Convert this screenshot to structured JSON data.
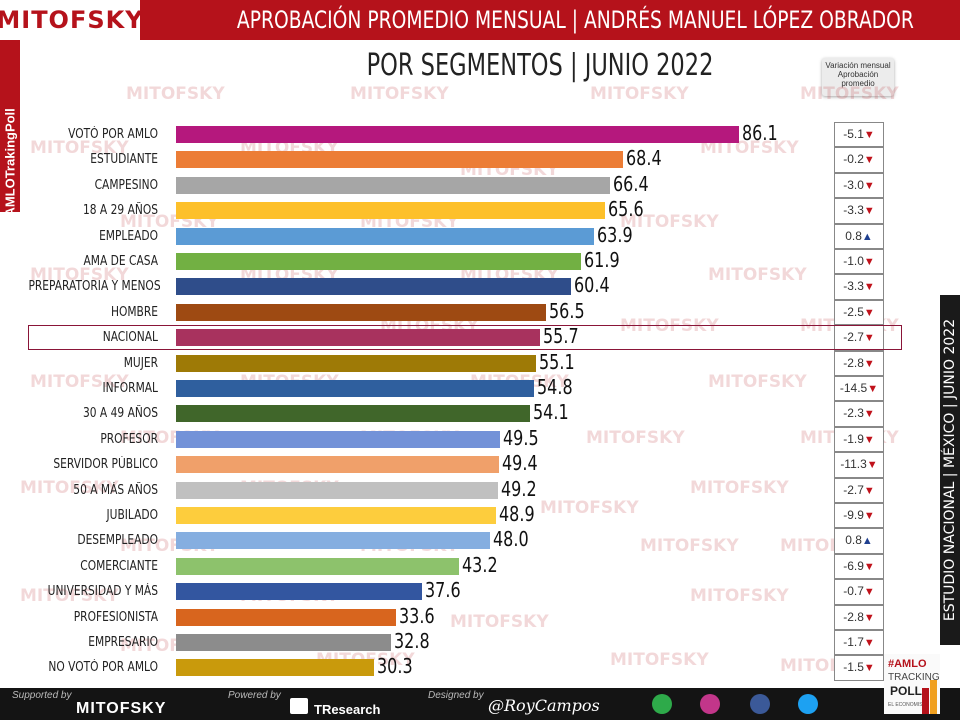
{
  "header": {
    "logo": "MITOFSKY",
    "title": "APROBACIÓN PROMEDIO MENSUAL  |  ANDRÉS MANUEL LÓPEZ OBRADOR",
    "subtitle": "POR SEGMENTOS  | JUNIO 2022",
    "side_tag": "#AMLOTrakingPoll"
  },
  "study_label": "ESTUDIO NACIONAL  |  MÉXICO  |  JUNIO 2022",
  "variation_legend": [
    "Variación mensual",
    "Aprobación",
    "promedio"
  ],
  "watermark": "MITOFSKY",
  "colors": {
    "brand": "#b5121b",
    "highlight_border": "#8a1538",
    "down": "#c0121b",
    "up": "#1f3f8f"
  },
  "chart_data": {
    "type": "bar",
    "orientation": "horizontal",
    "title": "APROBACIÓN PROMEDIO MENSUAL | ANDRÉS MANUEL LÓPEZ OBRADOR",
    "subtitle": "POR SEGMENTOS | JUNIO 2022",
    "xlim": [
      0,
      100
    ],
    "grid": false,
    "highlighted_category": "NACIONAL",
    "categories": [
      "VOTÓ POR AMLO",
      "ESTUDIANTE",
      "CAMPESINO",
      "18 A 29 AÑOS",
      "EMPLEADO",
      "AMA DE CASA",
      "PREPARATORIA Y MENOS",
      "HOMBRE",
      "NACIONAL",
      "MUJER",
      "INFORMAL",
      "30 A 49 AÑOS",
      "PROFESOR",
      "SERVIDOR PÚBLICO",
      "50 A MÁS AÑOS",
      "JUBILADO",
      "DESEMPLEADO",
      "COMERCIANTE",
      "UNIVERSIDAD Y MÁS",
      "PROFESIONISTA",
      "EMPRESARIO",
      "NO VOTÓ POR AMLO"
    ],
    "values": [
      86.1,
      68.4,
      66.4,
      65.6,
      63.9,
      61.9,
      60.4,
      56.5,
      55.7,
      55.1,
      54.8,
      54.1,
      49.5,
      49.4,
      49.2,
      48.9,
      48.0,
      43.2,
      37.6,
      33.6,
      32.8,
      30.3
    ],
    "value_labels": [
      "86.1",
      "68.4",
      "66.4",
      "65.6",
      "63.9",
      "61.9",
      "60.4",
      "56.5",
      "55.7",
      "55.1",
      "54.8",
      "54.1",
      "49.5",
      "49.4",
      "49.2",
      "48.9",
      "48.0",
      "43.2",
      "37.6",
      "33.6",
      "32.8",
      "30.3"
    ],
    "bar_colors": [
      "#b5187d",
      "#ec7d36",
      "#a6a6a6",
      "#fdc02a",
      "#5b9bd5",
      "#72b043",
      "#2f4d8a",
      "#9e4a12",
      "#a8325e",
      "#9e7a06",
      "#2f5f9e",
      "#40662a",
      "#7392d8",
      "#f0a06a",
      "#c0c0c0",
      "#fdcd3d",
      "#85aee0",
      "#8dc26c",
      "#3356a0",
      "#d8651e",
      "#8c8c8c",
      "#c99a0c"
    ],
    "monthly_variation": {
      "labels": [
        "-5.1",
        "-0.2",
        "-3.0",
        "-3.3",
        "0.8",
        "-1.0",
        "-3.3",
        "-2.5",
        "-2.7",
        "-2.8",
        "-14.5",
        "-2.3",
        "-1.9",
        "-11.3",
        "-2.7",
        "-9.9",
        "0.8",
        "-6.9",
        "-0.7",
        "-2.8",
        "-1.7",
        "-1.5"
      ],
      "values": [
        -5.1,
        -0.2,
        -3.0,
        -3.3,
        0.8,
        -1.0,
        -3.3,
        -2.5,
        -2.7,
        -2.8,
        -14.5,
        -2.3,
        -1.9,
        -11.3,
        -2.7,
        -9.9,
        0.8,
        -6.9,
        -0.7,
        -2.8,
        -1.7,
        -1.5
      ]
    }
  },
  "footer": {
    "supported_by": "Supported by",
    "supported_name": "MITOFSKY",
    "powered_by": "Powered by",
    "powered_name": "TResearch",
    "designed_by": "Designed by",
    "designer": "@RoyCampos",
    "badge": [
      "#AMLO",
      "TRACKING",
      "POLL",
      "EL ECONOMISTA"
    ]
  }
}
